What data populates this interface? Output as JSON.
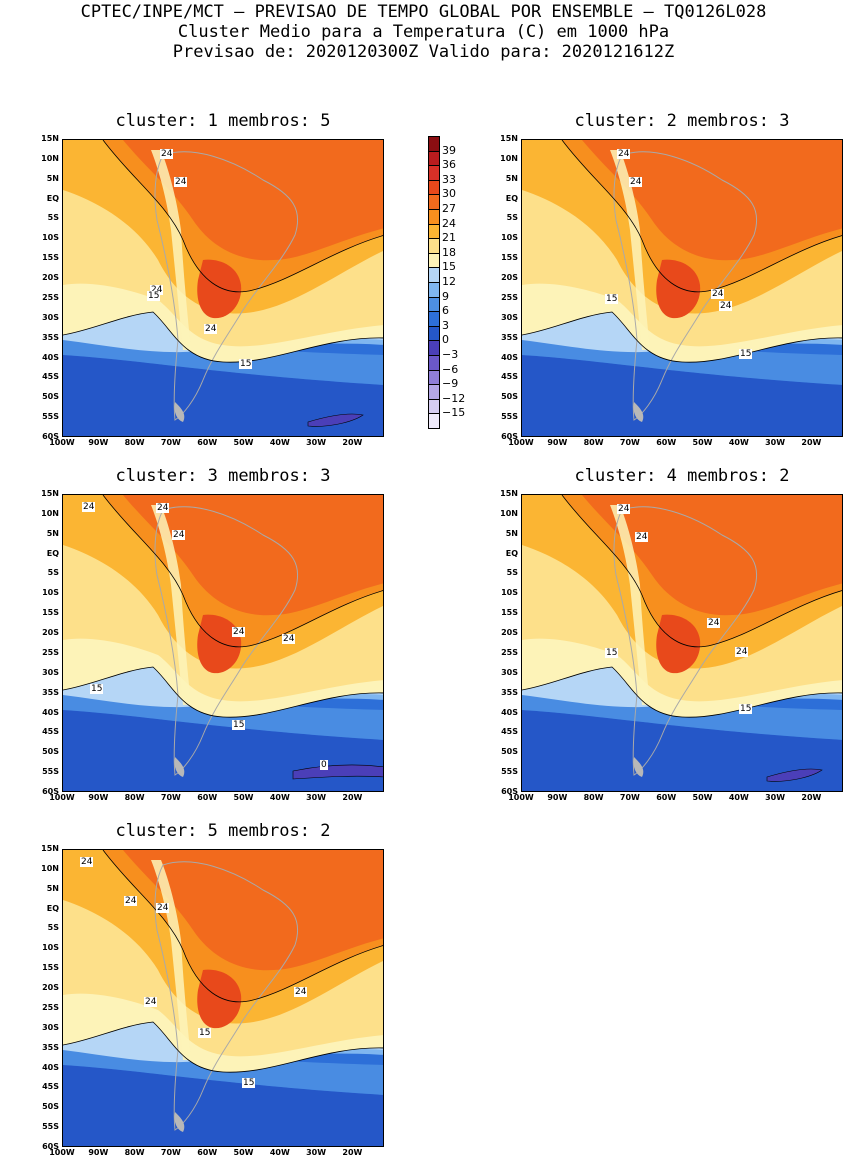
{
  "header": {
    "line1": "CPTEC/INPE/MCT – PREVISAO DE TEMPO GLOBAL POR ENSEMBLE – TQ0126L028",
    "line2": "Cluster Medio para a Temperatura (C) em 1000 hPa",
    "line3": "Previsao de: 2020120300Z   Valido para: 2020121612Z"
  },
  "panels": [
    {
      "title": "cluster: 1  membros: 5",
      "contour_labels": [
        "24",
        "24",
        "24",
        "24",
        "15",
        "15"
      ]
    },
    {
      "title": "cluster: 2  membros: 3",
      "contour_labels": [
        "24",
        "24",
        "24",
        "24",
        "15",
        "15"
      ]
    },
    {
      "title": "cluster: 3  membros: 3",
      "contour_labels": [
        "24",
        "24",
        "24",
        "24",
        "24",
        "15",
        "15",
        "0"
      ]
    },
    {
      "title": "cluster: 4  membros: 2",
      "contour_labels": [
        "24",
        "24",
        "24",
        "24",
        "15",
        "15"
      ]
    },
    {
      "title": "cluster: 5  membros: 2",
      "contour_labels": [
        "24",
        "24",
        "24",
        "24",
        "24",
        "15",
        "15"
      ]
    }
  ],
  "axes": {
    "lat_ticks": [
      "15N",
      "10N",
      "5N",
      "EQ",
      "5S",
      "10S",
      "15S",
      "20S",
      "25S",
      "30S",
      "35S",
      "40S",
      "45S",
      "50S",
      "55S",
      "60S"
    ],
    "lon_ticks": [
      "100W",
      "90W",
      "80W",
      "70W",
      "60W",
      "50W",
      "40W",
      "30W",
      "20W"
    ]
  },
  "colorbar": {
    "labels": [
      "39",
      "36",
      "33",
      "30",
      "27",
      "24",
      "21",
      "18",
      "15",
      "12",
      "9",
      "6",
      "3",
      "0",
      "−3",
      "−6",
      "−9",
      "−12",
      "−15"
    ],
    "colors": [
      "#8b0e12",
      "#b81c1e",
      "#d73027",
      "#e8491b",
      "#f26a1d",
      "#f78f1e",
      "#fbb533",
      "#fde08a",
      "#fdf3b8",
      "#b5d6f6",
      "#7fb6f0",
      "#4d8fe3",
      "#2d6fd8",
      "#2557c8",
      "#4b3fb8",
      "#6b58c9",
      "#8f7ed8",
      "#b3a6e6",
      "#d6cdf2",
      "#efeafb"
    ]
  }
}
